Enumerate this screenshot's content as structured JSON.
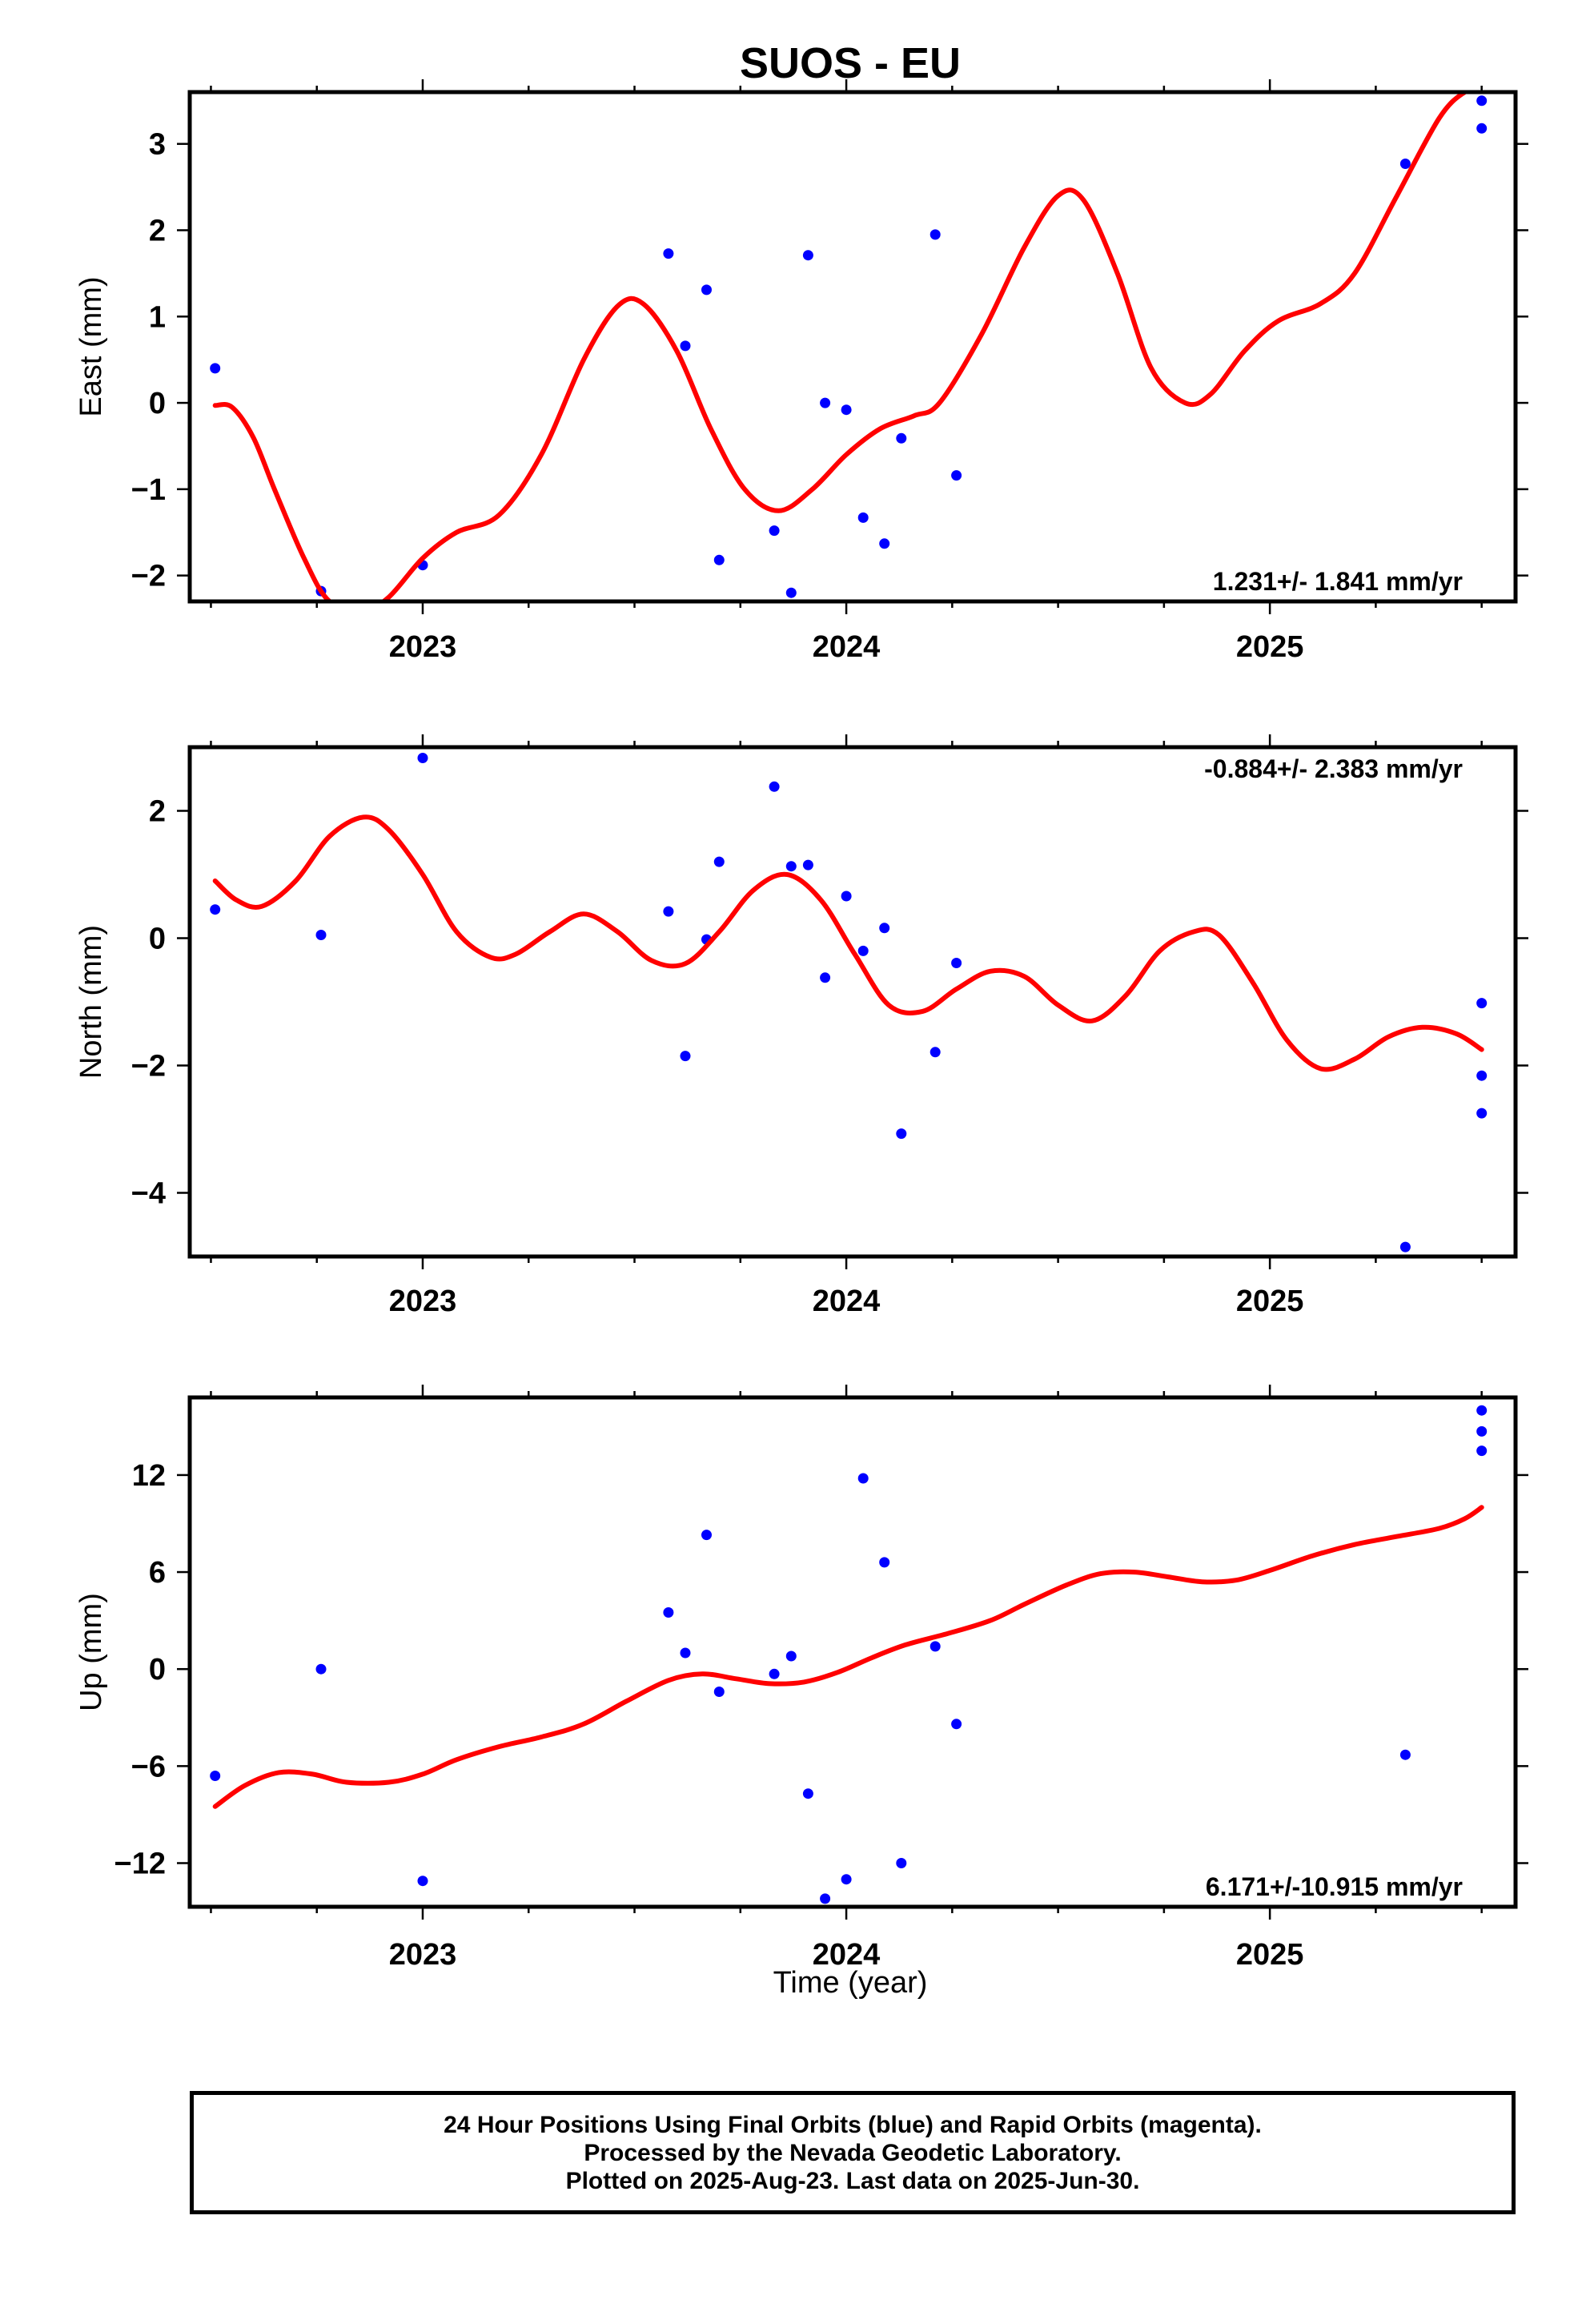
{
  "title": "SUOS - EU",
  "xlabel": "Time (year)",
  "footer": {
    "lines": [
      "24 Hour Positions Using Final Orbits (blue) and Rapid Orbits (magenta).",
      "Processed by the Nevada Geodetic Laboratory.",
      "Plotted on 2025-Aug-23. Last data on 2025-Jun-30."
    ]
  },
  "colors": {
    "points": "#0000ff",
    "fit": "#ff0000",
    "frame": "#000000"
  },
  "chart_data": [
    {
      "type": "scatter",
      "ylabel": "East (mm)",
      "rate_label": "1.231+/- 1.841 mm/yr",
      "rate_position": "bottom-right",
      "xlim": [
        2022.45,
        2025.58
      ],
      "ylim": [
        -2.3,
        3.6
      ],
      "x_ticks": [
        2023,
        2024,
        2025
      ],
      "y_ticks": [
        -2,
        -1,
        0,
        1,
        2,
        3
      ],
      "y_tick_labels": [
        "−2",
        "−1",
        "0",
        "1",
        "2",
        "3"
      ],
      "points": [
        [
          2022.51,
          0.4
        ],
        [
          2022.76,
          -2.18
        ],
        [
          2023.0,
          -1.88
        ],
        [
          2023.58,
          1.73
        ],
        [
          2023.62,
          0.66
        ],
        [
          2023.67,
          1.31
        ],
        [
          2023.7,
          -1.82
        ],
        [
          2023.83,
          -1.48
        ],
        [
          2023.87,
          -2.2
        ],
        [
          2023.91,
          1.71
        ],
        [
          2023.95,
          0.0
        ],
        [
          2024.0,
          -0.08
        ],
        [
          2024.04,
          -1.33
        ],
        [
          2024.09,
          -1.63
        ],
        [
          2024.13,
          -0.41
        ],
        [
          2024.21,
          1.95
        ],
        [
          2024.26,
          -0.84
        ],
        [
          2025.32,
          2.77
        ],
        [
          2025.5,
          3.5
        ],
        [
          2025.5,
          3.18
        ]
      ],
      "fit": [
        [
          2022.51,
          -0.03
        ],
        [
          2022.55,
          -0.05
        ],
        [
          2022.6,
          -0.4
        ],
        [
          2022.65,
          -1.0
        ],
        [
          2022.72,
          -1.8
        ],
        [
          2022.78,
          -2.3
        ],
        [
          2022.86,
          -2.4
        ],
        [
          2022.92,
          -2.25
        ],
        [
          2023.0,
          -1.8
        ],
        [
          2023.08,
          -1.5
        ],
        [
          2023.18,
          -1.3
        ],
        [
          2023.28,
          -0.6
        ],
        [
          2023.38,
          0.5
        ],
        [
          2023.46,
          1.12
        ],
        [
          2023.52,
          1.15
        ],
        [
          2023.6,
          0.6
        ],
        [
          2023.68,
          -0.3
        ],
        [
          2023.76,
          -1.0
        ],
        [
          2023.84,
          -1.25
        ],
        [
          2023.92,
          -1.0
        ],
        [
          2024.0,
          -0.6
        ],
        [
          2024.08,
          -0.3
        ],
        [
          2024.16,
          -0.15
        ],
        [
          2024.22,
          0.0
        ],
        [
          2024.32,
          0.8
        ],
        [
          2024.42,
          1.8
        ],
        [
          2024.5,
          2.4
        ],
        [
          2024.56,
          2.35
        ],
        [
          2024.64,
          1.5
        ],
        [
          2024.72,
          0.4
        ],
        [
          2024.8,
          0.0
        ],
        [
          2024.86,
          0.1
        ],
        [
          2024.94,
          0.6
        ],
        [
          2025.02,
          0.95
        ],
        [
          2025.12,
          1.15
        ],
        [
          2025.2,
          1.5
        ],
        [
          2025.3,
          2.4
        ],
        [
          2025.4,
          3.3
        ],
        [
          2025.46,
          3.6
        ],
        [
          2025.5,
          3.65
        ]
      ]
    },
    {
      "type": "scatter",
      "ylabel": "North (mm)",
      "rate_label": "-0.884+/- 2.383 mm/yr",
      "rate_position": "top-right",
      "xlim": [
        2022.45,
        2025.58
      ],
      "ylim": [
        -5.0,
        3.0
      ],
      "x_ticks": [
        2023,
        2024,
        2025
      ],
      "y_ticks": [
        -4,
        -2,
        0,
        2
      ],
      "y_tick_labels": [
        "−4",
        "−2",
        "0",
        "2"
      ],
      "points": [
        [
          2022.51,
          0.45
        ],
        [
          2022.76,
          0.05
        ],
        [
          2023.0,
          2.83
        ],
        [
          2023.58,
          0.42
        ],
        [
          2023.62,
          -1.85
        ],
        [
          2023.67,
          -0.02
        ],
        [
          2023.7,
          1.2
        ],
        [
          2023.83,
          2.38
        ],
        [
          2023.87,
          1.13
        ],
        [
          2023.91,
          1.15
        ],
        [
          2023.95,
          -0.62
        ],
        [
          2024.0,
          0.66
        ],
        [
          2024.04,
          -0.2
        ],
        [
          2024.09,
          0.16
        ],
        [
          2024.13,
          -3.07
        ],
        [
          2024.21,
          -1.79
        ],
        [
          2024.26,
          -0.39
        ],
        [
          2025.32,
          -4.85
        ],
        [
          2025.5,
          -1.02
        ],
        [
          2025.5,
          -2.16
        ],
        [
          2025.5,
          -2.75
        ]
      ],
      "fit": [
        [
          2022.51,
          0.9
        ],
        [
          2022.56,
          0.6
        ],
        [
          2022.62,
          0.5
        ],
        [
          2022.7,
          0.9
        ],
        [
          2022.78,
          1.6
        ],
        [
          2022.86,
          1.9
        ],
        [
          2022.92,
          1.7
        ],
        [
          2023.0,
          1.0
        ],
        [
          2023.08,
          0.1
        ],
        [
          2023.16,
          -0.3
        ],
        [
          2023.22,
          -0.25
        ],
        [
          2023.3,
          0.1
        ],
        [
          2023.38,
          0.38
        ],
        [
          2023.46,
          0.1
        ],
        [
          2023.54,
          -0.35
        ],
        [
          2023.62,
          -0.4
        ],
        [
          2023.7,
          0.1
        ],
        [
          2023.78,
          0.75
        ],
        [
          2023.86,
          1.0
        ],
        [
          2023.94,
          0.6
        ],
        [
          2024.02,
          -0.25
        ],
        [
          2024.1,
          -1.05
        ],
        [
          2024.18,
          -1.15
        ],
        [
          2024.26,
          -0.8
        ],
        [
          2024.34,
          -0.52
        ],
        [
          2024.42,
          -0.6
        ],
        [
          2024.5,
          -1.05
        ],
        [
          2024.58,
          -1.3
        ],
        [
          2024.66,
          -0.9
        ],
        [
          2024.74,
          -0.2
        ],
        [
          2024.82,
          0.1
        ],
        [
          2024.88,
          0.05
        ],
        [
          2024.96,
          -0.7
        ],
        [
          2025.04,
          -1.6
        ],
        [
          2025.12,
          -2.05
        ],
        [
          2025.2,
          -1.9
        ],
        [
          2025.28,
          -1.55
        ],
        [
          2025.36,
          -1.4
        ],
        [
          2025.44,
          -1.5
        ],
        [
          2025.5,
          -1.75
        ]
      ]
    },
    {
      "type": "scatter",
      "ylabel": "Up (mm)",
      "rate_label": "6.171+/-10.915 mm/yr",
      "rate_position": "bottom-right",
      "xlim": [
        2022.45,
        2025.58
      ],
      "ylim": [
        -14.7,
        16.8
      ],
      "x_ticks": [
        2023,
        2024,
        2025
      ],
      "y_ticks": [
        -12,
        -6,
        0,
        6,
        12
      ],
      "y_tick_labels": [
        "−12",
        "−6",
        "0",
        "6",
        "12"
      ],
      "points": [
        [
          2022.51,
          -6.6
        ],
        [
          2022.76,
          0.0
        ],
        [
          2023.0,
          -13.1
        ],
        [
          2023.58,
          3.5
        ],
        [
          2023.62,
          1.0
        ],
        [
          2023.67,
          8.3
        ],
        [
          2023.7,
          -1.4
        ],
        [
          2023.83,
          -0.3
        ],
        [
          2023.87,
          0.8
        ],
        [
          2023.91,
          -7.7
        ],
        [
          2023.95,
          -14.2
        ],
        [
          2024.0,
          -13.0
        ],
        [
          2024.04,
          11.8
        ],
        [
          2024.09,
          6.6
        ],
        [
          2024.13,
          -12.0
        ],
        [
          2024.21,
          1.4
        ],
        [
          2024.26,
          -3.4
        ],
        [
          2025.32,
          -5.3
        ],
        [
          2025.5,
          16.0
        ],
        [
          2025.5,
          14.7
        ],
        [
          2025.5,
          13.5
        ]
      ],
      "fit": [
        [
          2022.51,
          -8.5
        ],
        [
          2022.58,
          -7.2
        ],
        [
          2022.66,
          -6.4
        ],
        [
          2022.74,
          -6.5
        ],
        [
          2022.82,
          -7.0
        ],
        [
          2022.92,
          -7.0
        ],
        [
          2023.0,
          -6.5
        ],
        [
          2023.08,
          -5.6
        ],
        [
          2023.18,
          -4.8
        ],
        [
          2023.28,
          -4.2
        ],
        [
          2023.38,
          -3.4
        ],
        [
          2023.48,
          -2.0
        ],
        [
          2023.58,
          -0.7
        ],
        [
          2023.66,
          -0.3
        ],
        [
          2023.74,
          -0.6
        ],
        [
          2023.82,
          -0.9
        ],
        [
          2023.9,
          -0.8
        ],
        [
          2023.98,
          -0.2
        ],
        [
          2024.06,
          0.7
        ],
        [
          2024.14,
          1.5
        ],
        [
          2024.24,
          2.2
        ],
        [
          2024.34,
          3.0
        ],
        [
          2024.42,
          4.0
        ],
        [
          2024.52,
          5.2
        ],
        [
          2024.6,
          5.9
        ],
        [
          2024.68,
          6.0
        ],
        [
          2024.76,
          5.7
        ],
        [
          2024.84,
          5.4
        ],
        [
          2024.92,
          5.5
        ],
        [
          2025.0,
          6.1
        ],
        [
          2025.1,
          7.0
        ],
        [
          2025.2,
          7.7
        ],
        [
          2025.3,
          8.2
        ],
        [
          2025.4,
          8.7
        ],
        [
          2025.46,
          9.3
        ],
        [
          2025.5,
          10.0
        ]
      ]
    }
  ]
}
